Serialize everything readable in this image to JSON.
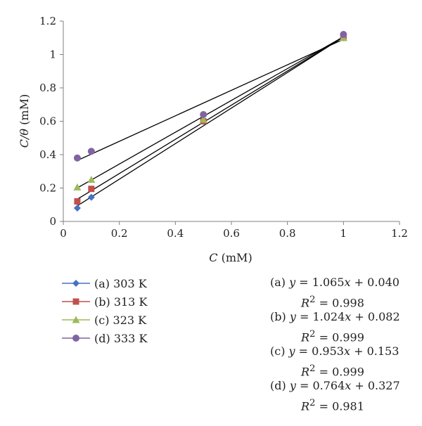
{
  "chart_data": {
    "type": "scatter",
    "title": "",
    "xlabel": {
      "var": "C",
      "unit": "(mM)"
    },
    "ylabel": {
      "var": "C/θ",
      "unit": "(mM)"
    },
    "xlim": [
      0,
      1.2
    ],
    "ylim": [
      0,
      1.2
    ],
    "xticks": [
      "0",
      "0.2",
      "0.4",
      "0.6",
      "0.8",
      "1",
      "1.2"
    ],
    "yticks": [
      "0",
      "0.2",
      "0.4",
      "0.6",
      "0.8",
      "1",
      "1.2"
    ],
    "grid": false,
    "legend_position": "bottom-left",
    "series": [
      {
        "name": "(a) 303 K",
        "marker": "diamond",
        "color": "#4472C4",
        "x": [
          0.05,
          0.1,
          0.5,
          1.0
        ],
        "y": [
          0.08,
          0.145,
          0.6,
          1.1
        ],
        "fit": {
          "slope": 1.065,
          "intercept": 0.04
        },
        "equation": "(a) y = 1.065x + 0.040",
        "r2": "R2 = 0.998"
      },
      {
        "name": "(b) 313 K",
        "marker": "square",
        "color": "#C0504D",
        "x": [
          0.05,
          0.1,
          0.5,
          1.0
        ],
        "y": [
          0.12,
          0.195,
          0.6,
          1.1
        ],
        "fit": {
          "slope": 1.024,
          "intercept": 0.082
        },
        "equation": "(b) y = 1.024x + 0.082",
        "r2": "R2 = 0.999"
      },
      {
        "name": "(c) 323 K",
        "marker": "triangle",
        "color": "#9BBB59",
        "x": [
          0.05,
          0.1,
          0.5,
          1.0
        ],
        "y": [
          0.205,
          0.25,
          0.61,
          1.1
        ],
        "fit": {
          "slope": 0.953,
          "intercept": 0.153
        },
        "equation": "(c) y = 0.953x + 0.153",
        "r2": "R2 = 0.999"
      },
      {
        "name": "(d) 333 K",
        "marker": "circle",
        "color": "#8064A2",
        "x": [
          0.05,
          0.1,
          0.5,
          1.0
        ],
        "y": [
          0.38,
          0.42,
          0.64,
          1.12
        ],
        "fit": {
          "slope": 0.764,
          "intercept": 0.327
        },
        "equation": "(d) y = 0.764x + 0.327",
        "r2": "R2 = 0.981"
      }
    ]
  }
}
